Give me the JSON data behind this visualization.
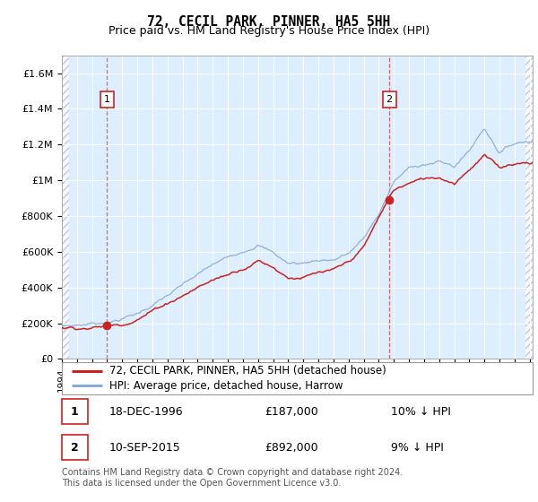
{
  "title": "72, CECIL PARK, PINNER, HA5 5HH",
  "subtitle": "Price paid vs. HM Land Registry's House Price Index (HPI)",
  "ylim": [
    0,
    1700000
  ],
  "yticks": [
    0,
    200000,
    400000,
    600000,
    800000,
    1000000,
    1200000,
    1400000,
    1600000
  ],
  "ytick_labels": [
    "£0",
    "£200K",
    "£400K",
    "£600K",
    "£800K",
    "£1M",
    "£1.2M",
    "£1.4M",
    "£1.6M"
  ],
  "xmin": 1994,
  "xmax": 2025.2,
  "plot_bg_color": "#ddeeff",
  "grid_color": "#ffffff",
  "sale1_x": 1997.0,
  "sale1_y": 187000,
  "sale2_x": 2015.7,
  "sale2_y": 892000,
  "prop_color": "#cc2222",
  "hpi_color": "#88aad4",
  "dashed_line_color": "#dd4444",
  "box_edge_color": "#cc2222",
  "legend_entries": [
    {
      "label": "72, CECIL PARK, PINNER, HA5 5HH (detached house)",
      "color": "#cc2222"
    },
    {
      "label": "HPI: Average price, detached house, Harrow",
      "color": "#88aad4"
    }
  ],
  "ann1_num": "1",
  "ann1_date": "18-DEC-1996",
  "ann1_price": "£187,000",
  "ann1_pct": "10% ↓ HPI",
  "ann2_num": "2",
  "ann2_date": "10-SEP-2015",
  "ann2_price": "£892,000",
  "ann2_pct": "9% ↓ HPI",
  "footer": "Contains HM Land Registry data © Crown copyright and database right 2024.\nThis data is licensed under the Open Government Licence v3.0.",
  "title_fontsize": 10.5,
  "subtitle_fontsize": 9,
  "tick_fontsize": 8,
  "legend_fontsize": 8.5,
  "ann_fontsize": 9,
  "footer_fontsize": 7
}
